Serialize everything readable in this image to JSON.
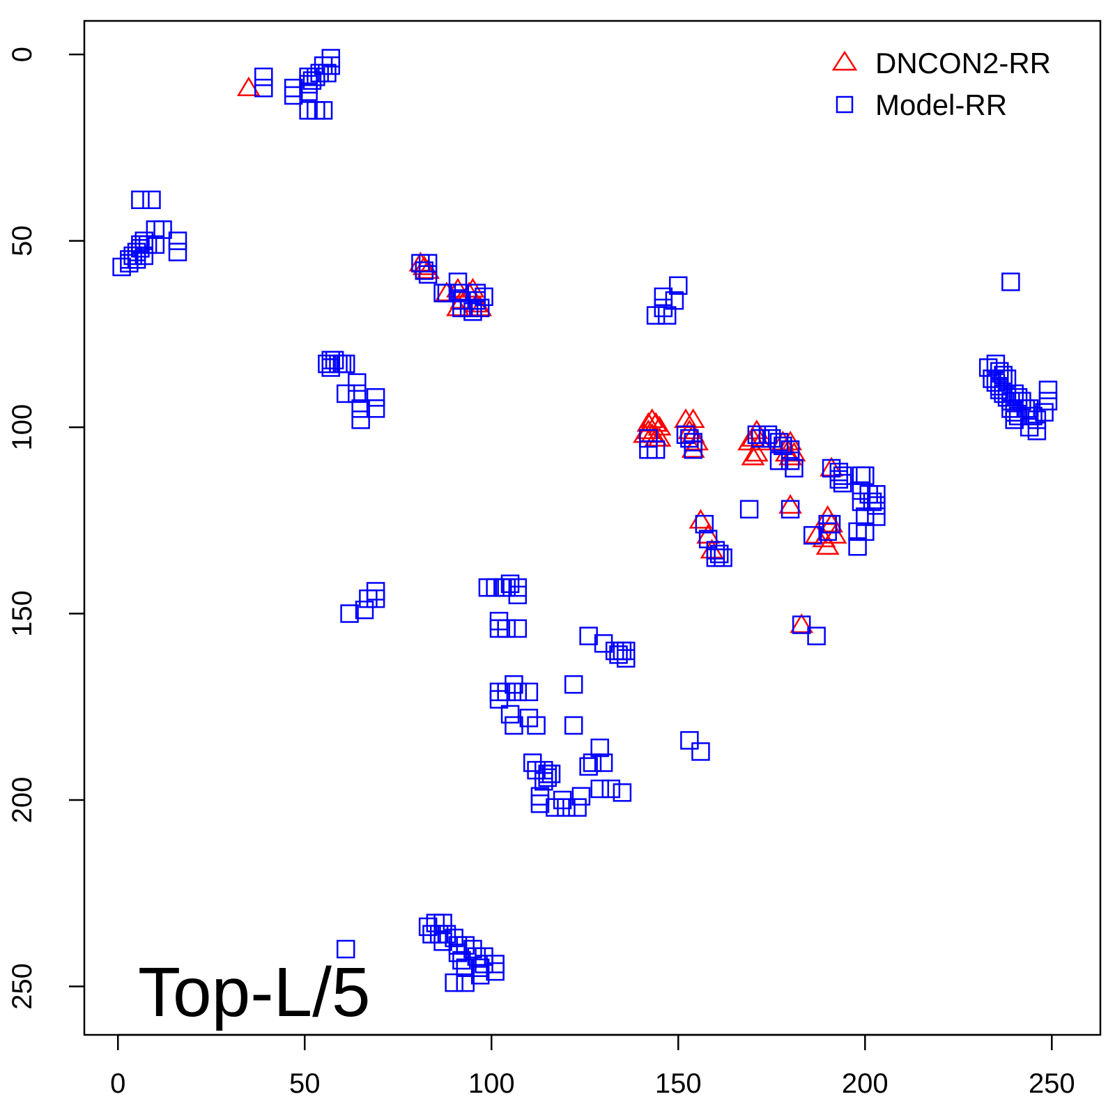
{
  "chart_data": {
    "type": "scatter",
    "title": "",
    "xlabel": "",
    "ylabel": "",
    "xlim": [
      -9,
      263
    ],
    "ylim": [
      -9,
      263
    ],
    "y_reversed": true,
    "grid": false,
    "panel_label": "Top-L/5",
    "x_ticks": [
      "0",
      "50",
      "100",
      "150",
      "200",
      "250"
    ],
    "y_ticks": [
      "0",
      "50",
      "100",
      "150",
      "200",
      "250"
    ],
    "legend": {
      "position": "top-right"
    },
    "colors": {
      "dncon2": "#ff0000",
      "model": "#0000ff"
    },
    "series": [
      {
        "name": "DNCON2-RR",
        "marker": "triangle",
        "points": [
          [
            35,
            9
          ],
          [
            81,
            56
          ],
          [
            82,
            57
          ],
          [
            83,
            58
          ],
          [
            88,
            64
          ],
          [
            91,
            63
          ],
          [
            92,
            66
          ],
          [
            91,
            68
          ],
          [
            94,
            64
          ],
          [
            95,
            63
          ],
          [
            96,
            67
          ],
          [
            97,
            68
          ],
          [
            142,
            99
          ],
          [
            143,
            98
          ],
          [
            144,
            99
          ],
          [
            145,
            100
          ],
          [
            142,
            101
          ],
          [
            143,
            102
          ],
          [
            145,
            103
          ],
          [
            141,
            102
          ],
          [
            144,
            103
          ],
          [
            152,
            98
          ],
          [
            154,
            98
          ],
          [
            153,
            101
          ],
          [
            154,
            102
          ],
          [
            155,
            104
          ],
          [
            154,
            106
          ],
          [
            169,
            104
          ],
          [
            170,
            103
          ],
          [
            171,
            101
          ],
          [
            172,
            104
          ],
          [
            171,
            107
          ],
          [
            170,
            108
          ],
          [
            178,
            104
          ],
          [
            180,
            104
          ],
          [
            179,
            107
          ],
          [
            181,
            107
          ],
          [
            180,
            108
          ],
          [
            191,
            111
          ],
          [
            180,
            121
          ],
          [
            187,
            129
          ],
          [
            190,
            124
          ],
          [
            191,
            126
          ],
          [
            192,
            129
          ],
          [
            190,
            132
          ],
          [
            189,
            130
          ],
          [
            156,
            125
          ],
          [
            158,
            129
          ],
          [
            159,
            133
          ],
          [
            183,
            153
          ]
        ]
      },
      {
        "name": "Model-RR",
        "marker": "square",
        "points": [
          [
            39,
            6
          ],
          [
            39,
            9
          ],
          [
            47,
            9
          ],
          [
            47,
            11
          ],
          [
            51,
            6
          ],
          [
            51,
            8
          ],
          [
            51,
            10
          ],
          [
            52,
            7
          ],
          [
            53,
            6
          ],
          [
            54,
            5
          ],
          [
            55,
            3
          ],
          [
            56,
            5
          ],
          [
            57,
            1
          ],
          [
            57,
            3
          ],
          [
            51,
            15
          ],
          [
            53,
            15
          ],
          [
            55,
            15
          ],
          [
            6,
            39
          ],
          [
            9,
            39
          ],
          [
            10,
            47
          ],
          [
            12,
            47
          ],
          [
            16,
            50
          ],
          [
            16,
            53
          ],
          [
            1,
            57
          ],
          [
            3,
            56
          ],
          [
            3,
            55
          ],
          [
            4,
            54
          ],
          [
            5,
            53
          ],
          [
            6,
            52
          ],
          [
            6,
            51
          ],
          [
            7,
            50
          ],
          [
            8,
            51
          ],
          [
            10,
            51
          ],
          [
            5,
            55
          ],
          [
            7,
            54
          ],
          [
            81,
            56
          ],
          [
            83,
            56
          ],
          [
            82,
            58
          ],
          [
            83,
            59
          ],
          [
            87,
            64
          ],
          [
            88,
            64
          ],
          [
            91,
            61
          ],
          [
            91,
            64
          ],
          [
            92,
            66
          ],
          [
            92,
            68
          ],
          [
            94,
            68
          ],
          [
            96,
            64
          ],
          [
            96,
            66
          ],
          [
            98,
            65
          ],
          [
            95,
            69
          ],
          [
            97,
            68
          ],
          [
            150,
            62
          ],
          [
            149,
            66
          ],
          [
            146,
            65
          ],
          [
            146,
            68
          ],
          [
            144,
            70
          ],
          [
            147,
            70
          ],
          [
            57,
            82
          ],
          [
            58,
            82
          ],
          [
            59,
            83
          ],
          [
            56,
            83
          ],
          [
            57,
            84
          ],
          [
            60,
            83
          ],
          [
            61,
            83
          ],
          [
            64,
            88
          ],
          [
            61,
            91
          ],
          [
            64,
            91
          ],
          [
            65,
            95
          ],
          [
            69,
            92
          ],
          [
            69,
            95
          ],
          [
            65,
            98
          ],
          [
            233,
            84
          ],
          [
            235,
            83
          ],
          [
            236,
            85
          ],
          [
            237,
            86
          ],
          [
            234,
            87
          ],
          [
            235,
            88
          ],
          [
            236,
            89
          ],
          [
            238,
            87
          ],
          [
            236,
            90
          ],
          [
            237,
            91
          ],
          [
            238,
            92
          ],
          [
            239,
            93
          ],
          [
            240,
            91
          ],
          [
            241,
            92
          ],
          [
            239,
            95
          ],
          [
            240,
            96
          ],
          [
            242,
            93
          ],
          [
            241,
            97
          ],
          [
            243,
            95
          ],
          [
            240,
            98
          ],
          [
            244,
            95
          ],
          [
            245,
            97
          ],
          [
            244,
            100
          ],
          [
            246,
            98
          ],
          [
            246,
            101
          ],
          [
            248,
            96
          ],
          [
            249,
            90
          ],
          [
            249,
            93
          ],
          [
            239,
            61
          ],
          [
            142,
            103
          ],
          [
            142,
            106
          ],
          [
            144,
            106
          ],
          [
            152,
            102
          ],
          [
            153,
            103
          ],
          [
            154,
            104
          ],
          [
            154,
            106
          ],
          [
            171,
            102
          ],
          [
            172,
            103
          ],
          [
            174,
            102
          ],
          [
            175,
            103
          ],
          [
            177,
            104
          ],
          [
            178,
            105
          ],
          [
            177,
            109
          ],
          [
            180,
            106
          ],
          [
            180,
            109
          ],
          [
            181,
            111
          ],
          [
            191,
            111
          ],
          [
            193,
            112
          ],
          [
            193,
            114
          ],
          [
            194,
            115
          ],
          [
            194,
            113
          ],
          [
            199,
            113
          ],
          [
            200,
            113
          ],
          [
            199,
            117
          ],
          [
            201,
            118
          ],
          [
            203,
            118
          ],
          [
            203,
            121
          ],
          [
            199,
            120
          ],
          [
            202,
            120
          ],
          [
            200,
            124
          ],
          [
            203,
            124
          ],
          [
            198,
            128
          ],
          [
            200,
            128
          ],
          [
            198,
            132
          ],
          [
            169,
            122
          ],
          [
            180,
            122
          ],
          [
            186,
            129
          ],
          [
            190,
            126
          ],
          [
            191,
            126
          ],
          [
            190,
            128
          ],
          [
            157,
            126
          ],
          [
            158,
            130
          ],
          [
            160,
            133
          ],
          [
            161,
            134
          ],
          [
            160,
            135
          ],
          [
            162,
            135
          ],
          [
            183,
            153
          ],
          [
            187,
            156
          ],
          [
            69,
            144
          ],
          [
            69,
            146
          ],
          [
            67,
            146
          ],
          [
            66,
            149
          ],
          [
            62,
            150
          ],
          [
            99,
            143
          ],
          [
            101,
            143
          ],
          [
            103,
            143
          ],
          [
            104,
            143
          ],
          [
            105,
            142
          ],
          [
            107,
            143
          ],
          [
            107,
            145
          ],
          [
            102,
            152
          ],
          [
            102,
            154
          ],
          [
            104,
            154
          ],
          [
            107,
            154
          ],
          [
            126,
            156
          ],
          [
            130,
            158
          ],
          [
            133,
            160
          ],
          [
            134,
            161
          ],
          [
            135,
            160
          ],
          [
            136,
            160
          ],
          [
            136,
            162
          ],
          [
            106,
            169
          ],
          [
            102,
            171
          ],
          [
            102,
            173
          ],
          [
            104,
            171
          ],
          [
            107,
            171
          ],
          [
            110,
            171
          ],
          [
            105,
            177
          ],
          [
            106,
            180
          ],
          [
            110,
            178
          ],
          [
            112,
            180
          ],
          [
            122,
            169
          ],
          [
            122,
            180
          ],
          [
            111,
            190
          ],
          [
            112,
            192
          ],
          [
            114,
            192
          ],
          [
            115,
            193
          ],
          [
            114,
            195
          ],
          [
            116,
            193
          ],
          [
            115,
            194
          ],
          [
            127,
            190
          ],
          [
            126,
            191
          ],
          [
            130,
            190
          ],
          [
            129,
            186
          ],
          [
            129,
            197
          ],
          [
            132,
            197
          ],
          [
            135,
            198
          ],
          [
            124,
            199
          ],
          [
            123,
            202
          ],
          [
            117,
            202
          ],
          [
            119,
            200
          ],
          [
            120,
            202
          ],
          [
            113,
            199
          ],
          [
            113,
            201
          ],
          [
            153,
            184
          ],
          [
            156,
            187
          ],
          [
            61,
            240
          ],
          [
            83,
            234
          ],
          [
            85,
            233
          ],
          [
            87,
            233
          ],
          [
            84,
            236
          ],
          [
            86,
            236
          ],
          [
            88,
            236
          ],
          [
            87,
            238
          ],
          [
            90,
            237
          ],
          [
            91,
            239
          ],
          [
            91,
            241
          ],
          [
            92,
            243
          ],
          [
            93,
            239
          ],
          [
            93,
            245
          ],
          [
            95,
            240
          ],
          [
            96,
            242
          ],
          [
            97,
            245
          ],
          [
            98,
            242
          ],
          [
            98,
            244
          ],
          [
            97,
            247
          ],
          [
            101,
            244
          ],
          [
            101,
            246
          ],
          [
            90,
            249
          ],
          [
            93,
            249
          ]
        ]
      }
    ]
  }
}
